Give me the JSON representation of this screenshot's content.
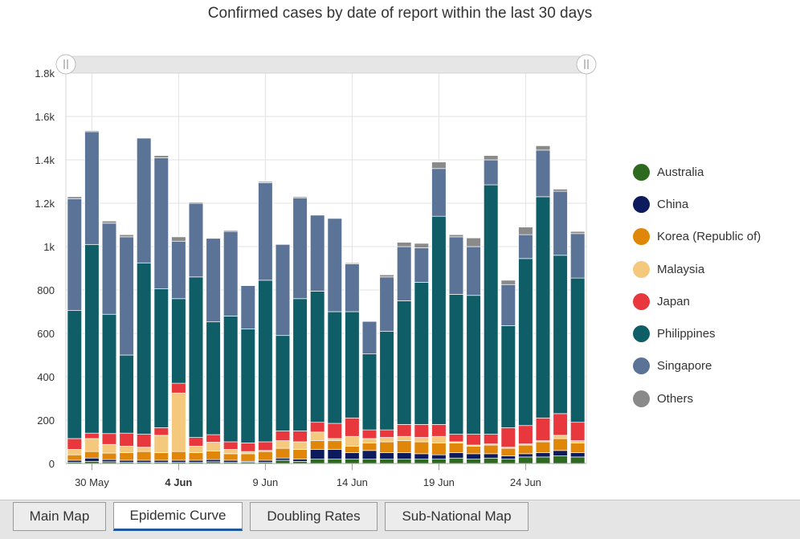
{
  "chart_data": {
    "type": "bar",
    "stacked": true,
    "title": "Confirmed cases by date of report within the last 30 days",
    "xlabel": "",
    "ylabel": "",
    "ylim": [
      0,
      1800
    ],
    "yticks": [
      "0",
      "200",
      "400",
      "600",
      "800",
      "1k",
      "1.2k",
      "1.4k",
      "1.6k",
      "1.8k"
    ],
    "xticks": [
      {
        "index": 1,
        "label": "30 May",
        "bold": false
      },
      {
        "index": 6,
        "label": "4 Jun",
        "bold": true
      },
      {
        "index": 11,
        "label": "9 Jun",
        "bold": false
      },
      {
        "index": 16,
        "label": "14 Jun",
        "bold": false
      },
      {
        "index": 21,
        "label": "19 Jun",
        "bold": false
      },
      {
        "index": 26,
        "label": "24 Jun",
        "bold": false
      }
    ],
    "grid": true,
    "legend_position": "right",
    "categories": [
      "29 May",
      "30 May",
      "31 May",
      "1 Jun",
      "2 Jun",
      "3 Jun",
      "4 Jun",
      "5 Jun",
      "6 Jun",
      "7 Jun",
      "8 Jun",
      "9 Jun",
      "10 Jun",
      "11 Jun",
      "12 Jun",
      "13 Jun",
      "14 Jun",
      "15 Jun",
      "16 Jun",
      "17 Jun",
      "18 Jun",
      "19 Jun",
      "20 Jun",
      "21 Jun",
      "22 Jun",
      "23 Jun",
      "24 Jun",
      "25 Jun",
      "26 Jun",
      "27 Jun"
    ],
    "series": [
      {
        "name": "Australia",
        "color": "#2d6a1f",
        "values": [
          5,
          10,
          8,
          5,
          5,
          5,
          5,
          5,
          8,
          5,
          5,
          5,
          15,
          10,
          20,
          20,
          20,
          20,
          20,
          20,
          20,
          20,
          25,
          20,
          25,
          20,
          30,
          30,
          35,
          30
        ]
      },
      {
        "name": "China",
        "color": "#0d1a5c",
        "values": [
          10,
          15,
          10,
          10,
          10,
          10,
          10,
          10,
          10,
          10,
          5,
          10,
          10,
          10,
          45,
          45,
          30,
          40,
          30,
          30,
          25,
          20,
          25,
          25,
          20,
          15,
          15,
          20,
          25,
          20
        ]
      },
      {
        "name": "Korea (Republic of)",
        "color": "#e0870a",
        "values": [
          25,
          30,
          30,
          35,
          40,
          35,
          40,
          35,
          40,
          30,
          35,
          40,
          45,
          45,
          40,
          40,
          30,
          35,
          50,
          55,
          55,
          55,
          45,
          35,
          40,
          35,
          40,
          50,
          55,
          45
        ]
      },
      {
        "name": "Malaysia",
        "color": "#f4c97e",
        "values": [
          25,
          60,
          40,
          30,
          20,
          80,
          270,
          30,
          40,
          20,
          10,
          5,
          35,
          35,
          40,
          10,
          45,
          20,
          20,
          20,
          20,
          30,
          5,
          5,
          5,
          5,
          5,
          5,
          15,
          10
        ]
      },
      {
        "name": "Japan",
        "color": "#e8373d",
        "values": [
          50,
          25,
          50,
          60,
          60,
          35,
          45,
          40,
          35,
          35,
          40,
          40,
          45,
          50,
          45,
          70,
          85,
          40,
          35,
          55,
          60,
          55,
          35,
          50,
          45,
          90,
          85,
          105,
          100,
          85
        ]
      },
      {
        "name": "Philippines",
        "color": "#0f5d67",
        "values": [
          590,
          870,
          550,
          360,
          790,
          640,
          390,
          740,
          520,
          580,
          525,
          745,
          440,
          610,
          605,
          515,
          490,
          350,
          455,
          570,
          655,
          960,
          645,
          640,
          1150,
          470,
          770,
          1020,
          730,
          665
        ]
      },
      {
        "name": "Singapore",
        "color": "#5b7396",
        "values": [
          515,
          520,
          420,
          545,
          575,
          605,
          265,
          340,
          385,
          390,
          200,
          450,
          420,
          465,
          350,
          430,
          220,
          150,
          250,
          250,
          160,
          220,
          265,
          225,
          115,
          190,
          110,
          215,
          295,
          205
        ]
      },
      {
        "name": "Others",
        "color": "#8a8a8a",
        "values": [
          10,
          5,
          10,
          10,
          0,
          10,
          20,
          5,
          0,
          5,
          0,
          5,
          0,
          5,
          0,
          0,
          5,
          0,
          10,
          20,
          20,
          30,
          10,
          40,
          20,
          20,
          35,
          20,
          10,
          10
        ]
      }
    ]
  },
  "legend": {
    "items": [
      {
        "label": "Australia",
        "color": "#2d6a1f"
      },
      {
        "label": "China",
        "color": "#0d1a5c"
      },
      {
        "label": "Korea (Republic of)",
        "color": "#e0870a"
      },
      {
        "label": "Malaysia",
        "color": "#f4c97e"
      },
      {
        "label": "Japan",
        "color": "#e8373d"
      },
      {
        "label": "Philippines",
        "color": "#0f5d67"
      },
      {
        "label": "Singapore",
        "color": "#5b7396"
      },
      {
        "label": "Others",
        "color": "#8a8a8a"
      }
    ]
  },
  "tabs": [
    {
      "label": "Main Map",
      "active": false
    },
    {
      "label": "Epidemic Curve",
      "active": true
    },
    {
      "label": "Doubling Rates",
      "active": false
    },
    {
      "label": "Sub-National Map",
      "active": false
    }
  ]
}
